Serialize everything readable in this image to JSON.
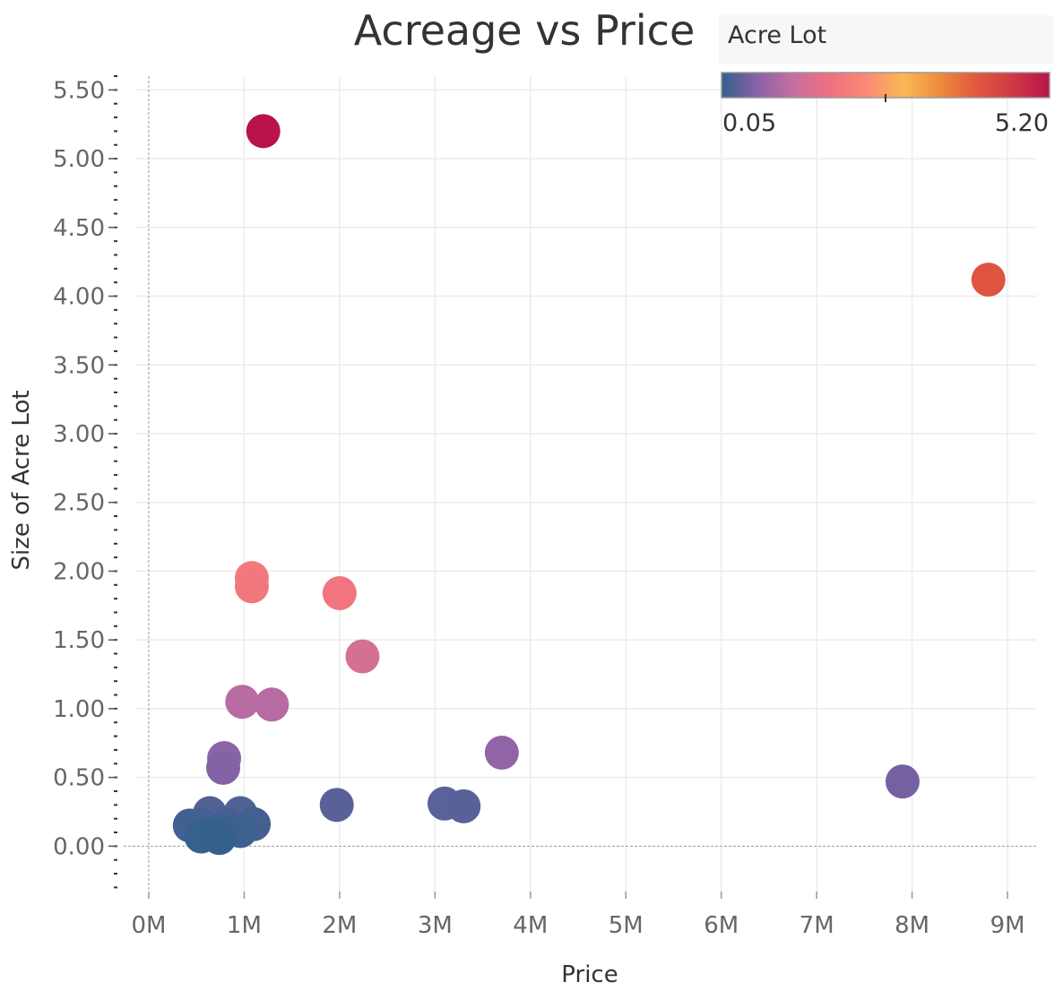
{
  "chart_data": {
    "type": "scatter",
    "title": "Acreage vs Price",
    "xlabel": "Price",
    "ylabel": "Size of Acre Lot",
    "xlim": [
      -0.15,
      9.3
    ],
    "ylim": [
      -0.33,
      5.6
    ],
    "x_unit": "M",
    "x_ticks": [
      0,
      1,
      2,
      3,
      4,
      5,
      6,
      7,
      8,
      9
    ],
    "x_tick_labels": [
      "0M",
      "1M",
      "2M",
      "3M",
      "4M",
      "5M",
      "6M",
      "7M",
      "8M",
      "9M"
    ],
    "y_ticks": [
      0,
      0.5,
      1,
      1.5,
      2,
      2.5,
      3,
      3.5,
      4,
      4.5,
      5,
      5.5
    ],
    "y_tick_labels": [
      "0.00",
      "0.50",
      "1.00",
      "1.50",
      "2.00",
      "2.50",
      "3.00",
      "3.50",
      "4.00",
      "4.50",
      "5.00",
      "5.50"
    ],
    "grid": true,
    "color_field": "Acre Lot",
    "color_range": [
      0.05,
      5.2
    ],
    "color_stops": [
      "#33608c",
      "#8b62a8",
      "#c86fa0",
      "#f0717f",
      "#fa8a74",
      "#fab854",
      "#ee8a3d",
      "#e0583f",
      "#cf3846",
      "#b8134a"
    ],
    "series": [
      {
        "x": [
          1.2,
          8.8,
          1.08,
          1.08,
          2.0,
          2.24,
          0.98,
          1.29,
          3.7,
          0.79,
          0.78,
          7.9,
          1.97,
          3.1,
          3.3,
          0.64,
          0.96,
          0.43,
          0.55,
          0.82,
          1.1,
          0.73,
          0.96,
          0.6,
          0.55,
          0.74
        ],
        "y": [
          5.2,
          4.12,
          1.95,
          1.89,
          1.84,
          1.38,
          1.05,
          1.03,
          0.68,
          0.64,
          0.57,
          0.47,
          0.3,
          0.31,
          0.29,
          0.24,
          0.24,
          0.15,
          0.15,
          0.15,
          0.16,
          0.1,
          0.11,
          0.09,
          0.07,
          0.06
        ]
      }
    ],
    "legend": {
      "title": "Acre Lot",
      "min_label": "0.05",
      "max_label": "5.20",
      "position": "top-right"
    }
  }
}
